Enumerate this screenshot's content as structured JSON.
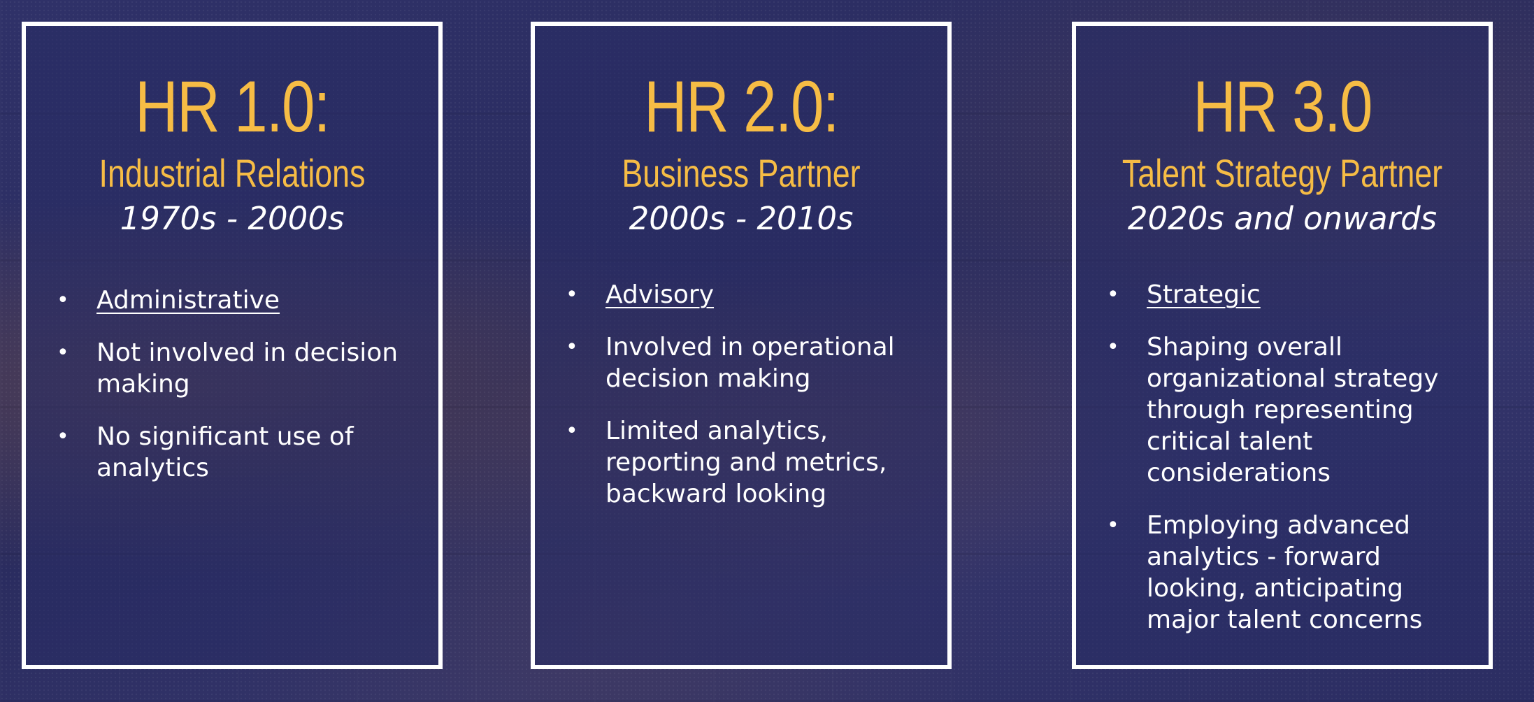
{
  "panels": [
    {
      "title": "HR 1.0:",
      "subtitle": "Industrial Relations",
      "era": "1970s - 2000s",
      "points": [
        "Administrative",
        "Not involved in decision making",
        "No significant use of analytics"
      ]
    },
    {
      "title": "HR 2.0:",
      "subtitle": "Business Partner",
      "era": "2000s - 2010s",
      "points": [
        "Advisory",
        "Involved in operational decision making",
        "Limited analytics, reporting and metrics, backward looking"
      ]
    },
    {
      "title": "HR 3.0",
      "subtitle": "Talent Strategy Partner",
      "era": "2020s and onwards",
      "points": [
        "Strategic",
        "Shaping overall organizational strategy through representing critical talent considerations",
        "Employing advanced analytics - forward looking, anticipating major talent concerns"
      ]
    }
  ],
  "bullet_glyph": "•",
  "colors": {
    "accent": "#f6bc45",
    "text": "#ffffff",
    "background": "#2b2e63",
    "border": "#ffffff"
  }
}
